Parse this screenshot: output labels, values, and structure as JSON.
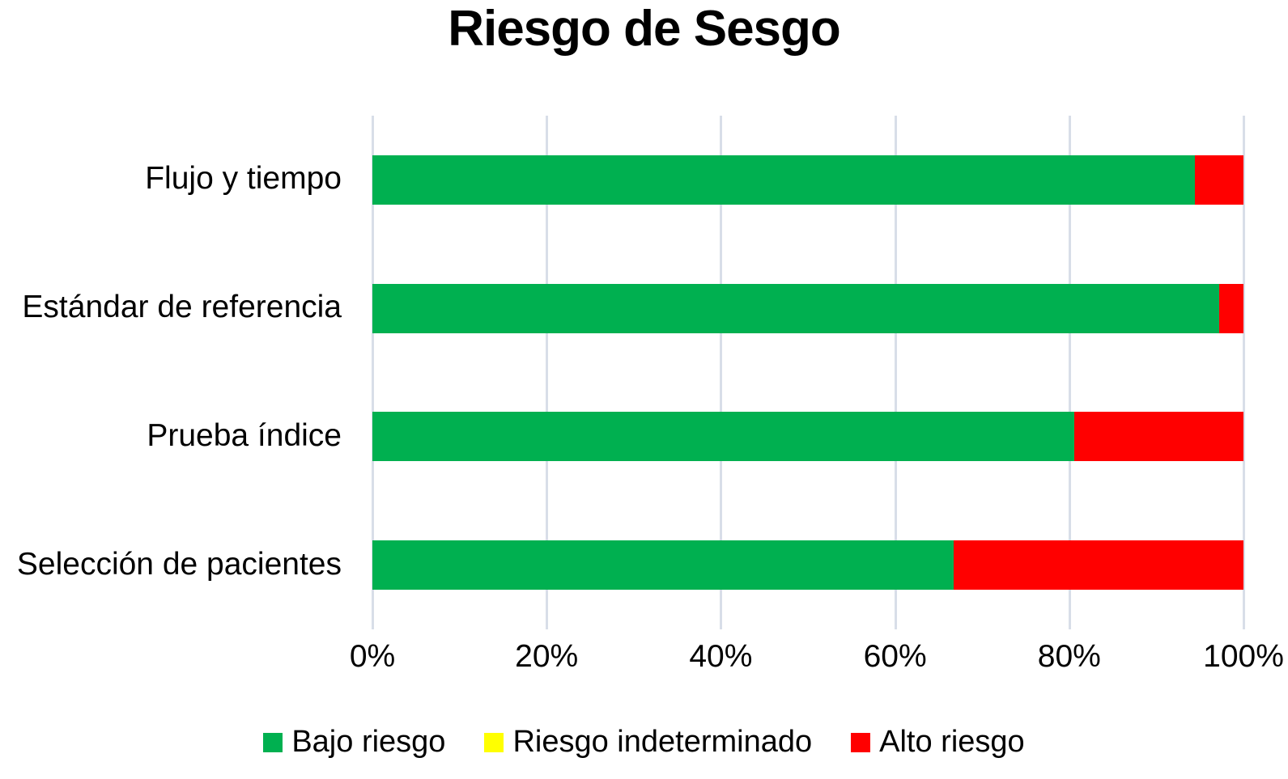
{
  "title": "Riesgo de Sesgo",
  "chart_data": {
    "type": "bar",
    "orientation": "horizontal",
    "stacked": true,
    "title": "Riesgo de Sesgo",
    "categories": [
      "Flujo y tiempo",
      "Estándar de referencia",
      "Prueba índice",
      "Selección de pacientes"
    ],
    "series": [
      {
        "name": "Bajo riesgo",
        "color": "#00B050",
        "values": [
          94.4,
          97.2,
          80.6,
          66.7
        ]
      },
      {
        "name": "Riesgo indeterminado",
        "color": "#FFFF00",
        "values": [
          0,
          0,
          0,
          0
        ]
      },
      {
        "name": "Alto riesgo",
        "color": "#FF0000",
        "values": [
          5.6,
          2.8,
          19.4,
          33.3
        ]
      }
    ],
    "x_ticks": [
      "0%",
      "20%",
      "40%",
      "60%",
      "80%",
      "100%"
    ],
    "xlim": [
      0,
      100
    ],
    "xlabel": "",
    "ylabel": "",
    "grid": true,
    "gridline_color": "#d8dee8",
    "legend_position": "bottom",
    "background_color": "#ffffff",
    "text_color": "#000000"
  }
}
